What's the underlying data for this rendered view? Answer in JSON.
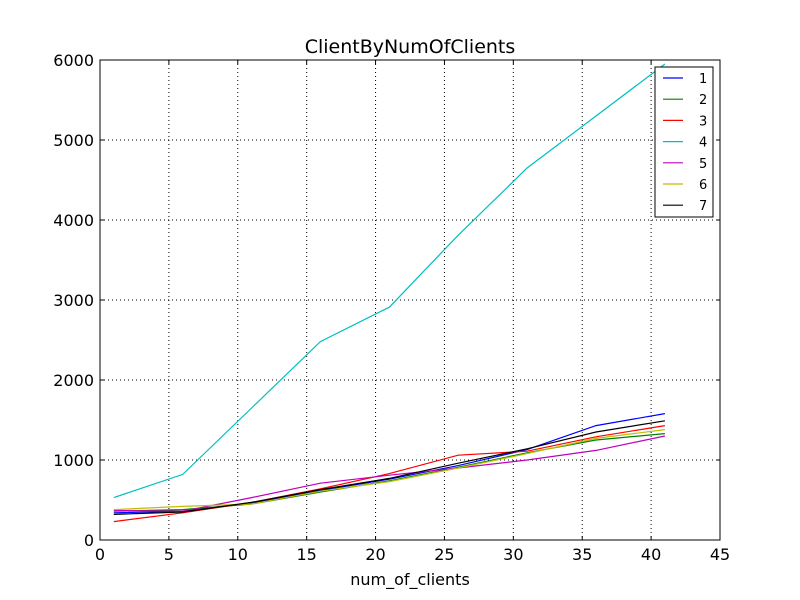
{
  "chart_data": {
    "type": "line",
    "title": "ClientByNumOfClients",
    "xlabel": "num_of_clients",
    "ylabel": "",
    "xlim": [
      0,
      45
    ],
    "ylim": [
      0,
      6000
    ],
    "xticks": [
      0,
      5,
      10,
      15,
      20,
      25,
      30,
      35,
      40,
      45
    ],
    "yticks": [
      0,
      1000,
      2000,
      3000,
      4000,
      5000,
      6000
    ],
    "grid": true,
    "legend_position": "top-right",
    "x": [
      1,
      6,
      11,
      16,
      21,
      26,
      31,
      36,
      41
    ],
    "series": [
      {
        "name": "1",
        "color": "#0000ff",
        "values": [
          340,
          360,
          460,
          620,
          760,
          930,
          1130,
          1430,
          1580
        ]
      },
      {
        "name": "2",
        "color": "#008000",
        "values": [
          360,
          380,
          450,
          600,
          740,
          910,
          1090,
          1250,
          1330
        ]
      },
      {
        "name": "3",
        "color": "#ff0000",
        "values": [
          230,
          340,
          470,
          640,
          830,
          1060,
          1110,
          1290,
          1430
        ]
      },
      {
        "name": "4",
        "color": "#00bfbf",
        "values": [
          530,
          820,
          1650,
          2480,
          2910,
          3810,
          4650,
          5300,
          5950
        ]
      },
      {
        "name": "5",
        "color": "#bf00bf",
        "values": [
          370,
          360,
          530,
          710,
          810,
          900,
          1000,
          1120,
          1300
        ]
      },
      {
        "name": "6",
        "color": "#bfbf00",
        "values": [
          380,
          420,
          450,
          610,
          730,
          900,
          1080,
          1270,
          1380
        ]
      },
      {
        "name": "7",
        "color": "#000000",
        "values": [
          320,
          350,
          470,
          630,
          770,
          960,
          1140,
          1350,
          1490
        ]
      }
    ]
  }
}
